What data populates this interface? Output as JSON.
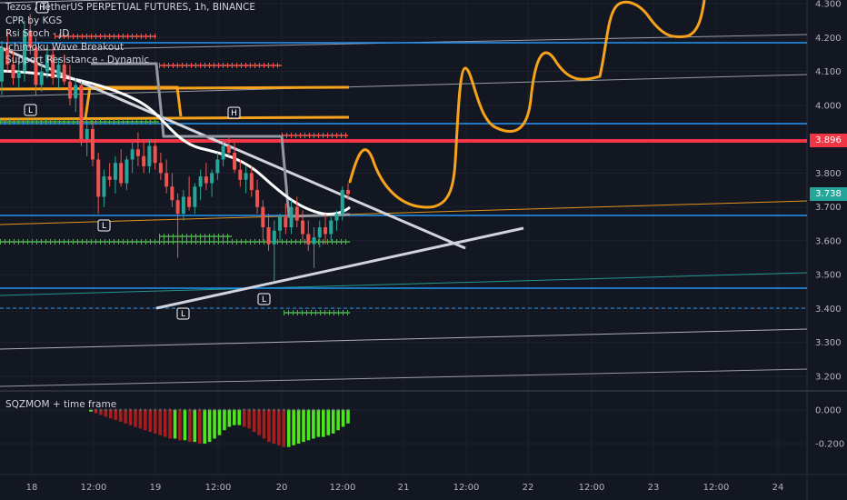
{
  "legend": {
    "symbol": "Tezos / TetherUS PERPETUAL FUTURES, 1h, BINANCE",
    "indicators": [
      "CPR by KGS",
      "Rsi Stoch - JD",
      "Ichimoku Wave Breakout",
      "Support Resistance - Dynamic"
    ]
  },
  "oscillator": {
    "title": "SQZMOM + time frame"
  },
  "tags": {
    "red": "3.896",
    "current": "3.738"
  },
  "colors": {
    "bg": "#131722",
    "grid": "#1e222d",
    "up": "#26a69a",
    "down": "#ef5350",
    "orange": "#f7a21b",
    "red_line": "#f23645",
    "blue": "#2196f3",
    "green_dash": "#4caf50",
    "sq_green": "#4ee61e",
    "sq_red": "#a61d1d"
  },
  "chart_data": {
    "type": "candlestick",
    "title": "Tezos / TetherUS PERPETUAL FUTURES, 1h, BINANCE",
    "y_ticks": [
      "4.300",
      "4.200",
      "4.100",
      "4.000",
      "3.900",
      "3.800",
      "3.700",
      "3.600",
      "3.500",
      "3.400",
      "3.300",
      "3.200"
    ],
    "x_ticks": [
      "18",
      "12:00",
      "19",
      "12:00",
      "20",
      "12:00",
      "21",
      "12:00",
      "22",
      "12:00",
      "23",
      "12:00",
      "24"
    ],
    "price_range": [
      3.15,
      4.33
    ],
    "current_price": 3.738,
    "red_level": 3.896,
    "osc_ticks": [
      "0.000",
      "-0.200"
    ],
    "osc_range": [
      -0.3,
      0.05
    ],
    "candles": [
      {
        "o": 4.07,
        "h": 4.19,
        "l": 4.03,
        "c": 4.17
      },
      {
        "o": 4.17,
        "h": 4.22,
        "l": 4.1,
        "c": 4.12
      },
      {
        "o": 4.12,
        "h": 4.16,
        "l": 4.06,
        "c": 4.08
      },
      {
        "o": 4.08,
        "h": 4.13,
        "l": 4.05,
        "c": 4.1
      },
      {
        "o": 4.1,
        "h": 4.25,
        "l": 4.07,
        "c": 4.22
      },
      {
        "o": 4.22,
        "h": 4.27,
        "l": 4.15,
        "c": 4.17
      },
      {
        "o": 4.17,
        "h": 4.2,
        "l": 4.03,
        "c": 4.06
      },
      {
        "o": 4.06,
        "h": 4.12,
        "l": 4.04,
        "c": 4.1
      },
      {
        "o": 4.1,
        "h": 4.18,
        "l": 4.08,
        "c": 4.15
      },
      {
        "o": 4.15,
        "h": 4.17,
        "l": 4.06,
        "c": 4.08
      },
      {
        "o": 4.08,
        "h": 4.14,
        "l": 4.05,
        "c": 4.12
      },
      {
        "o": 4.12,
        "h": 4.15,
        "l": 4.06,
        "c": 4.07
      },
      {
        "o": 4.07,
        "h": 4.12,
        "l": 4.0,
        "c": 4.02
      },
      {
        "o": 4.02,
        "h": 4.08,
        "l": 3.98,
        "c": 4.06
      },
      {
        "o": 4.06,
        "h": 4.07,
        "l": 3.88,
        "c": 3.9
      },
      {
        "o": 3.9,
        "h": 3.95,
        "l": 3.85,
        "c": 3.93
      },
      {
        "o": 3.93,
        "h": 3.96,
        "l": 3.82,
        "c": 3.84
      },
      {
        "o": 3.84,
        "h": 3.86,
        "l": 3.68,
        "c": 3.73
      },
      {
        "o": 3.73,
        "h": 3.81,
        "l": 3.7,
        "c": 3.79
      },
      {
        "o": 3.79,
        "h": 3.83,
        "l": 3.76,
        "c": 3.78
      },
      {
        "o": 3.78,
        "h": 3.85,
        "l": 3.74,
        "c": 3.83
      },
      {
        "o": 3.83,
        "h": 3.87,
        "l": 3.76,
        "c": 3.77
      },
      {
        "o": 3.77,
        "h": 3.85,
        "l": 3.75,
        "c": 3.84
      },
      {
        "o": 3.84,
        "h": 3.89,
        "l": 3.8,
        "c": 3.87
      },
      {
        "o": 3.87,
        "h": 3.92,
        "l": 3.82,
        "c": 3.85
      },
      {
        "o": 3.85,
        "h": 3.89,
        "l": 3.8,
        "c": 3.82
      },
      {
        "o": 3.82,
        "h": 3.9,
        "l": 3.8,
        "c": 3.88
      },
      {
        "o": 3.88,
        "h": 3.9,
        "l": 3.81,
        "c": 3.83
      },
      {
        "o": 3.83,
        "h": 3.86,
        "l": 3.78,
        "c": 3.8
      },
      {
        "o": 3.8,
        "h": 3.84,
        "l": 3.74,
        "c": 3.76
      },
      {
        "o": 3.76,
        "h": 3.8,
        "l": 3.7,
        "c": 3.72
      },
      {
        "o": 3.72,
        "h": 3.74,
        "l": 3.55,
        "c": 3.68
      },
      {
        "o": 3.68,
        "h": 3.75,
        "l": 3.66,
        "c": 3.73
      },
      {
        "o": 3.73,
        "h": 3.79,
        "l": 3.69,
        "c": 3.7
      },
      {
        "o": 3.7,
        "h": 3.77,
        "l": 3.68,
        "c": 3.76
      },
      {
        "o": 3.76,
        "h": 3.81,
        "l": 3.72,
        "c": 3.79
      },
      {
        "o": 3.79,
        "h": 3.83,
        "l": 3.75,
        "c": 3.77
      },
      {
        "o": 3.77,
        "h": 3.81,
        "l": 3.73,
        "c": 3.8
      },
      {
        "o": 3.8,
        "h": 3.86,
        "l": 3.78,
        "c": 3.84
      },
      {
        "o": 3.84,
        "h": 3.9,
        "l": 3.82,
        "c": 3.88
      },
      {
        "o": 3.88,
        "h": 3.91,
        "l": 3.85,
        "c": 3.86
      },
      {
        "o": 3.86,
        "h": 3.89,
        "l": 3.8,
        "c": 3.81
      },
      {
        "o": 3.81,
        "h": 3.84,
        "l": 3.76,
        "c": 3.78
      },
      {
        "o": 3.78,
        "h": 3.82,
        "l": 3.74,
        "c": 3.8
      },
      {
        "o": 3.8,
        "h": 3.82,
        "l": 3.73,
        "c": 3.75
      },
      {
        "o": 3.75,
        "h": 3.78,
        "l": 3.68,
        "c": 3.7
      },
      {
        "o": 3.7,
        "h": 3.72,
        "l": 3.6,
        "c": 3.64
      },
      {
        "o": 3.64,
        "h": 3.68,
        "l": 3.57,
        "c": 3.59
      },
      {
        "o": 3.59,
        "h": 3.66,
        "l": 3.48,
        "c": 3.63
      },
      {
        "o": 3.63,
        "h": 3.68,
        "l": 3.6,
        "c": 3.67
      },
      {
        "o": 3.67,
        "h": 3.71,
        "l": 3.62,
        "c": 3.64
      },
      {
        "o": 3.64,
        "h": 3.72,
        "l": 3.62,
        "c": 3.7
      },
      {
        "o": 3.7,
        "h": 3.73,
        "l": 3.64,
        "c": 3.66
      },
      {
        "o": 3.66,
        "h": 3.69,
        "l": 3.6,
        "c": 3.62
      },
      {
        "o": 3.62,
        "h": 3.66,
        "l": 3.57,
        "c": 3.59
      },
      {
        "o": 3.59,
        "h": 3.64,
        "l": 3.52,
        "c": 3.61
      },
      {
        "o": 3.61,
        "h": 3.66,
        "l": 3.58,
        "c": 3.64
      },
      {
        "o": 3.64,
        "h": 3.68,
        "l": 3.59,
        "c": 3.62
      },
      {
        "o": 3.62,
        "h": 3.67,
        "l": 3.6,
        "c": 3.66
      },
      {
        "o": 3.66,
        "h": 3.69,
        "l": 3.63,
        "c": 3.68
      },
      {
        "o": 3.68,
        "h": 3.76,
        "l": 3.66,
        "c": 3.75
      },
      {
        "o": 3.75,
        "h": 3.77,
        "l": 3.72,
        "c": 3.738
      }
    ],
    "momentum": [
      -0.01,
      -0.02,
      -0.03,
      -0.04,
      -0.05,
      -0.06,
      -0.07,
      -0.08,
      -0.09,
      -0.1,
      -0.11,
      -0.12,
      -0.13,
      -0.14,
      -0.15,
      -0.16,
      -0.17,
      -0.17,
      -0.18,
      -0.18,
      -0.19,
      -0.19,
      -0.2,
      -0.2,
      -0.19,
      -0.17,
      -0.15,
      -0.12,
      -0.1,
      -0.09,
      -0.09,
      -0.1,
      -0.11,
      -0.13,
      -0.15,
      -0.17,
      -0.19,
      -0.2,
      -0.21,
      -0.22,
      -0.22,
      -0.21,
      -0.2,
      -0.19,
      -0.18,
      -0.17,
      -0.16,
      -0.16,
      -0.15,
      -0.14,
      -0.12,
      -0.1,
      -0.08
    ]
  }
}
